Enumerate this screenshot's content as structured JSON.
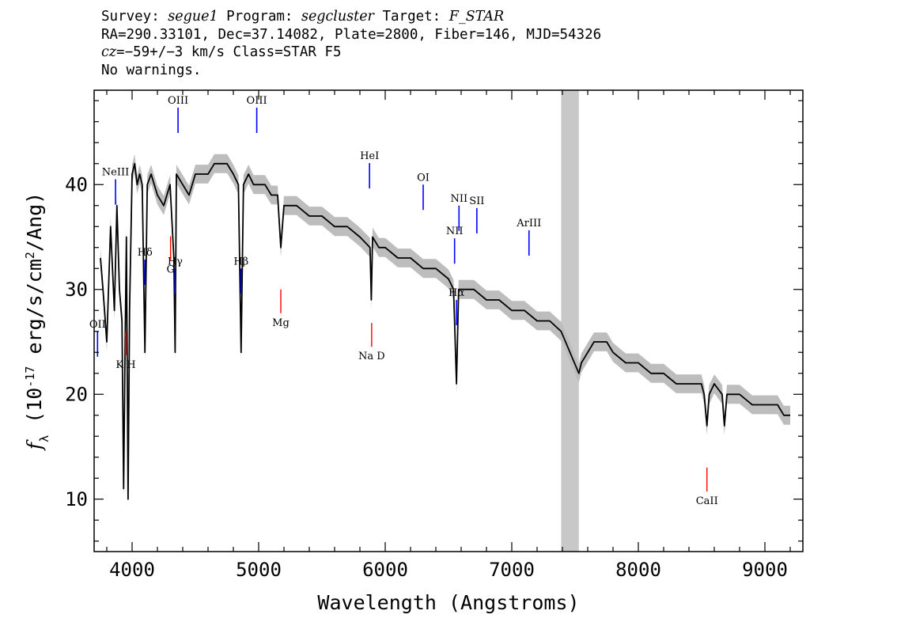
{
  "header": {
    "line1_parts": {
      "survey_label": "Survey: ",
      "survey_value": "segue1",
      "program_label": " Program: ",
      "program_value": "segcluster",
      "target_label": " Target: ",
      "target_value": "F_STAR"
    },
    "line2": "RA=290.33101, Dec=37.14082, Plate=2800, Fiber=146, MJD=54326",
    "line3_parts": {
      "cz_label": "cz",
      "cz_value": "=−59+/−3",
      "cz_unit": " km/s Class=STAR F5"
    },
    "line4": "No warnings."
  },
  "colors": {
    "flux": "#000000",
    "error_band": "#bdbdbd",
    "emission_marker": "#0000ff",
    "absorption_marker": "#ff0000",
    "masked_region": "#c8c8c8"
  },
  "chart_data": {
    "type": "line",
    "xlabel": "Wavelength (Angstroms)",
    "ylabel": "f_λ (10^-17 erg/s/cm^2/Ang)",
    "xlim": [
      3700,
      9300
    ],
    "ylim": [
      5,
      49
    ],
    "x_ticks": [
      4000,
      5000,
      6000,
      7000,
      8000,
      9000
    ],
    "y_ticks": [
      10,
      20,
      30,
      40
    ],
    "masked_region": [
      7390,
      7530
    ],
    "series": [
      {
        "x": [
          3750,
          3770,
          3800,
          3830,
          3860,
          3880,
          3900,
          3920,
          3933,
          3945,
          3955,
          3968,
          3980,
          4000,
          4020,
          4040,
          4060,
          4080,
          4101,
          4120,
          4150,
          4200,
          4250,
          4300,
          4330,
          4340,
          4350,
          4400,
          4450,
          4500,
          4550,
          4600,
          4650,
          4700,
          4750,
          4800,
          4840,
          4861,
          4880,
          4920,
          4960,
          5000,
          5050,
          5100,
          5150,
          5175,
          5200,
          5250,
          5300,
          5400,
          5500,
          5600,
          5700,
          5800,
          5880,
          5890,
          5900,
          5950,
          6000,
          6100,
          6200,
          6300,
          6400,
          6500,
          6540,
          6563,
          6580,
          6620,
          6700,
          6800,
          6900,
          7000,
          7100,
          7200,
          7300,
          7390,
          7530,
          7550,
          7600,
          7650,
          7700,
          7750,
          7800,
          7900,
          8000,
          8100,
          8200,
          8300,
          8400,
          8498,
          8520,
          8542,
          8560,
          8600,
          8662,
          8680,
          8700,
          8800,
          8900,
          9000,
          9100,
          9150,
          9200
        ],
        "y": [
          33,
          30,
          25,
          36,
          28,
          38,
          30,
          27,
          11,
          25,
          35,
          10,
          28,
          41,
          42,
          40,
          41,
          40,
          24,
          40,
          41,
          39,
          38,
          40,
          33,
          24,
          41,
          40,
          39,
          41,
          41,
          41,
          42,
          42,
          42,
          41,
          40,
          24,
          40,
          41,
          40,
          40,
          40,
          39,
          39,
          34,
          38,
          38,
          38,
          37,
          37,
          36,
          36,
          35,
          34,
          29,
          35,
          34,
          34,
          33,
          33,
          32,
          32,
          31,
          30,
          21,
          30,
          30,
          30,
          29,
          29,
          28,
          28,
          27,
          27,
          26,
          22,
          23,
          24,
          25,
          25,
          25,
          24,
          23,
          23,
          22,
          22,
          21,
          21,
          21,
          20,
          17,
          20,
          21,
          20,
          17,
          20,
          20,
          19,
          19,
          19,
          18,
          18
        ]
      }
    ],
    "lines": {
      "emission": [
        {
          "label": "OII",
          "wave": 3727
        },
        {
          "label": "NeIII",
          "wave": 3869
        },
        {
          "label": "Hδ",
          "wave": 4102
        },
        {
          "label": "Hγ",
          "wave": 4340
        },
        {
          "label": "OIII",
          "wave": 4363
        },
        {
          "label": "Hβ",
          "wave": 4861
        },
        {
          "label": "OIII",
          "wave": 4985
        },
        {
          "label": "HeI",
          "wave": 5876
        },
        {
          "label": "OI",
          "wave": 6300
        },
        {
          "label": "NII",
          "wave": 6548
        },
        {
          "label": "Hα",
          "wave": 6563
        },
        {
          "label": "NII",
          "wave": 6583
        },
        {
          "label": "SII",
          "wave": 6724
        },
        {
          "label": "ArIII",
          "wave": 7136
        }
      ],
      "absorption": [
        {
          "label": "K H",
          "wave": 3950
        },
        {
          "label": "G",
          "wave": 4304
        },
        {
          "label": "Mg",
          "wave": 5175
        },
        {
          "label": "Na D",
          "wave": 5893
        },
        {
          "label": "CaII",
          "wave": 8542
        }
      ]
    }
  }
}
